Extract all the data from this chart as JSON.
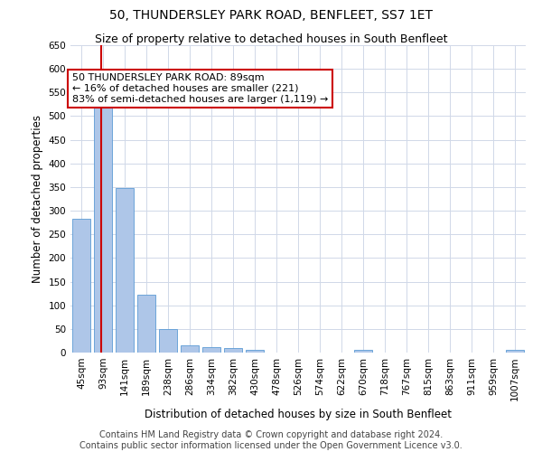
{
  "title": "50, THUNDERSLEY PARK ROAD, BENFLEET, SS7 1ET",
  "subtitle": "Size of property relative to detached houses in South Benfleet",
  "xlabel": "Distribution of detached houses by size in South Benfleet",
  "ylabel": "Number of detached properties",
  "footer_line1": "Contains HM Land Registry data © Crown copyright and database right 2024.",
  "footer_line2": "Contains public sector information licensed under the Open Government Licence v3.0.",
  "categories": [
    "45sqm",
    "93sqm",
    "141sqm",
    "189sqm",
    "238sqm",
    "286sqm",
    "334sqm",
    "382sqm",
    "430sqm",
    "478sqm",
    "526sqm",
    "574sqm",
    "622sqm",
    "670sqm",
    "718sqm",
    "767sqm",
    "815sqm",
    "863sqm",
    "911sqm",
    "959sqm",
    "1007sqm"
  ],
  "values": [
    283,
    522,
    347,
    122,
    49,
    16,
    11,
    9,
    5,
    0,
    0,
    0,
    0,
    5,
    0,
    0,
    0,
    0,
    0,
    0,
    5
  ],
  "bar_color": "#aec6e8",
  "bar_edge_color": "#5b9bd5",
  "grid_color": "#d0d8e8",
  "annotation_text_line1": "50 THUNDERSLEY PARK ROAD: 89sqm",
  "annotation_text_line2": "← 16% of detached houses are smaller (221)",
  "annotation_text_line3": "83% of semi-detached houses are larger (1,119) →",
  "annotation_box_color": "#ffffff",
  "annotation_box_edge_color": "#cc0000",
  "vline_color": "#cc0000",
  "ylim": [
    0,
    650
  ],
  "yticks": [
    0,
    50,
    100,
    150,
    200,
    250,
    300,
    350,
    400,
    450,
    500,
    550,
    600,
    650
  ],
  "background_color": "#ffffff",
  "title_fontsize": 10,
  "subtitle_fontsize": 9,
  "axis_label_fontsize": 8.5,
  "tick_fontsize": 7.5,
  "annotation_fontsize": 8,
  "footer_fontsize": 7
}
